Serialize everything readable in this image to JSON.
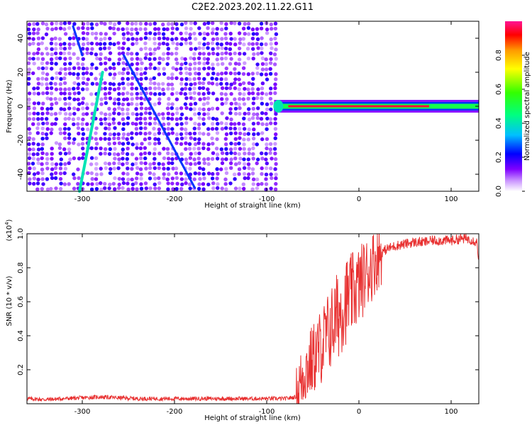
{
  "title": "C2E2.2023.202.11.22.G11",
  "colors": {
    "snr_line": "#e83030",
    "background": "#ffffff",
    "colormap": [
      "#ffffff",
      "#cc99ff",
      "#7f00ff",
      "#0000ff",
      "#00bfff",
      "#00ff7f",
      "#33ff00",
      "#ffff00",
      "#ff9900",
      "#ff0000",
      "#ff1493"
    ]
  },
  "chart_data": [
    {
      "type": "heatmap",
      "name": "spectrogram",
      "xlabel": "Height of straight line (km)",
      "ylabel": "Frequency (Hz)",
      "xlim": [
        -360,
        130
      ],
      "ylim": [
        -50,
        50
      ],
      "xticks": [
        -300,
        -200,
        -100,
        0,
        100
      ],
      "yticks": [
        -40,
        -20,
        0,
        20,
        40
      ],
      "noise_region": {
        "x_start": -360,
        "x_end": -88,
        "approx_amplitude": 0.15
      },
      "features": [
        {
          "kind": "line",
          "label": "steep streak",
          "x": [
            -303,
            -278
          ],
          "y": [
            -50,
            20
          ],
          "amplitude": 0.4
        },
        {
          "kind": "line",
          "label": "descending streak",
          "x": [
            -255,
            -178
          ],
          "y": [
            30,
            -48
          ],
          "amplitude": 0.25
        },
        {
          "kind": "line",
          "label": "upper streak",
          "x": [
            -310,
            -300
          ],
          "y": [
            47,
            30
          ],
          "amplitude": 0.25
        },
        {
          "kind": "band",
          "label": "carrier",
          "x": [
            -92,
            130
          ],
          "y": 0,
          "peak_amplitude": 0.95
        }
      ],
      "colorbar": {
        "label": "Normalized spectral amplitude",
        "range": [
          0.0,
          1.0
        ],
        "ticks": [
          "0.0",
          "0.2",
          "0.4",
          "0.6",
          "0.8"
        ]
      }
    },
    {
      "type": "line",
      "name": "snr",
      "xlabel": "Height of straight line (km)",
      "ylabel": "SNR (10 * v/v)",
      "yscale_label": "(x10",
      "yscale_exp": "4",
      "yscale_close": ")",
      "xlim": [
        -360,
        130
      ],
      "ylim": [
        0.0,
        1.0
      ],
      "xticks": [
        -300,
        -200,
        -100,
        0,
        100
      ],
      "yticks": [
        "0.2",
        "0.4",
        "0.6",
        "0.8",
        "1.0"
      ],
      "series": [
        {
          "name": "SNR",
          "x": [
            -360,
            -340,
            -320,
            -300,
            -280,
            -260,
            -240,
            -220,
            -200,
            -180,
            -160,
            -140,
            -120,
            -100,
            -80,
            -68,
            -65,
            -60,
            -55,
            -50,
            -45,
            -40,
            -35,
            -30,
            -25,
            -20,
            -15,
            -10,
            -5,
            0,
            5,
            10,
            15,
            20,
            25,
            30,
            40,
            50,
            60,
            70,
            80,
            90,
            100,
            110,
            120,
            128,
            130
          ],
          "values": [
            0.03,
            0.025,
            0.03,
            0.035,
            0.04,
            0.035,
            0.03,
            0.03,
            0.03,
            0.03,
            0.03,
            0.03,
            0.03,
            0.03,
            0.03,
            0.04,
            0.1,
            0.18,
            0.22,
            0.26,
            0.3,
            0.35,
            0.4,
            0.45,
            0.5,
            0.55,
            0.6,
            0.63,
            0.66,
            0.7,
            0.74,
            0.78,
            0.82,
            0.86,
            0.89,
            0.91,
            0.93,
            0.94,
            0.95,
            0.95,
            0.96,
            0.96,
            0.96,
            0.97,
            0.97,
            0.95,
            0.85
          ]
        }
      ]
    }
  ]
}
